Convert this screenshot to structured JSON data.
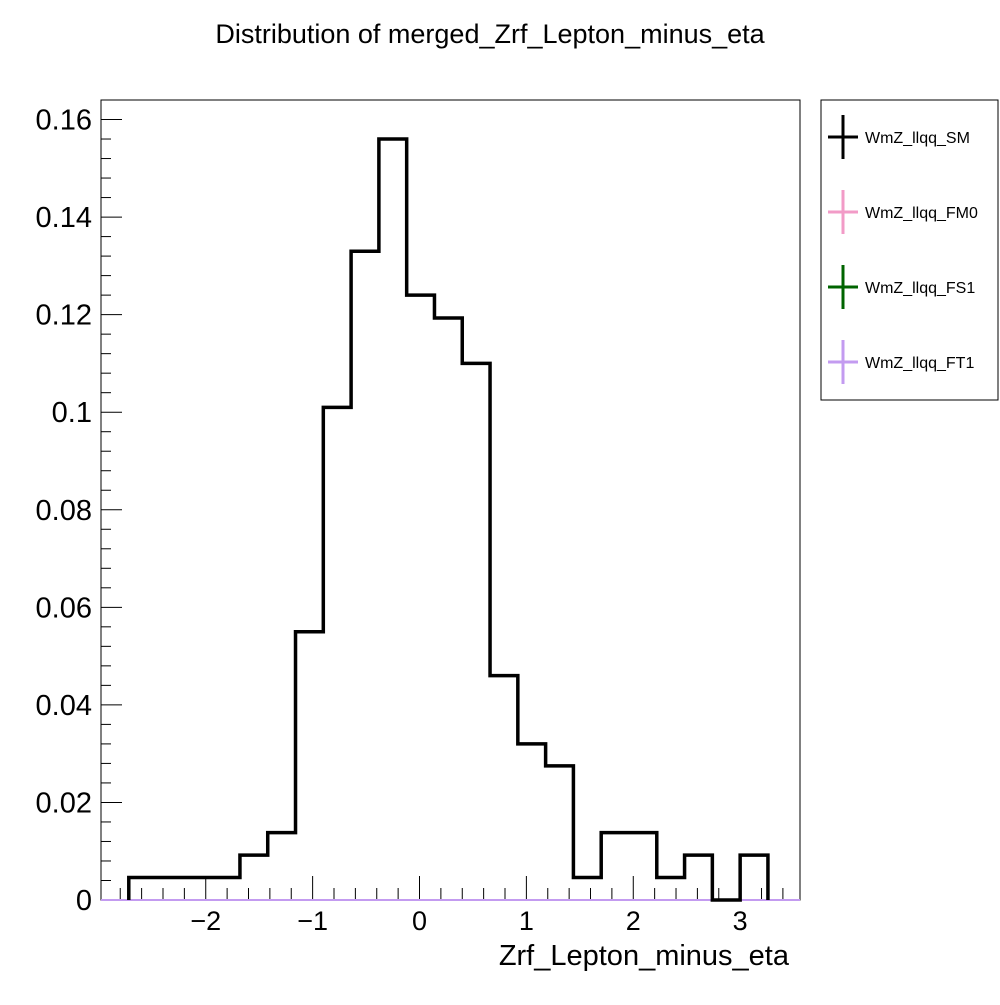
{
  "chart_data": {
    "type": "histogram",
    "title": "Distribution of merged_Zrf_Lepton_minus_eta",
    "xlabel": "Zrf_Lepton_minus_eta",
    "ylabel": "",
    "xlim": [
      -2.98,
      3.56
    ],
    "ylim": [
      0,
      0.164
    ],
    "x_ticks": [
      -2,
      -1,
      0,
      1,
      2,
      3
    ],
    "x_tick_labels": [
      "−2",
      "−1",
      "0",
      "1",
      "2",
      "3"
    ],
    "y_ticks": [
      0,
      0.02,
      0.04,
      0.06,
      0.08,
      0.1,
      0.12,
      0.14,
      0.16
    ],
    "y_tick_labels": [
      "0",
      "0.02",
      "0.04",
      "0.06",
      "0.08",
      "0.1",
      "0.12",
      "0.14",
      "0.16"
    ],
    "bin_edges": [
      -2.72,
      -2.46,
      -2.2,
      -1.94,
      -1.68,
      -1.42,
      -1.16,
      -0.9,
      -0.64,
      -0.38,
      -0.12,
      0.14,
      0.4,
      0.66,
      0.92,
      1.18,
      1.44,
      1.7,
      1.96,
      2.22,
      2.48,
      2.74,
      3.0,
      3.26
    ],
    "series": [
      {
        "name": "WmZ_llqq_SM",
        "color": "#000000",
        "values": [
          0.0046,
          0.0046,
          0.0046,
          0.0046,
          0.0092,
          0.0138,
          0.055,
          0.101,
          0.133,
          0.156,
          0.124,
          0.1193,
          0.11,
          0.046,
          0.032,
          0.0275,
          0.0046,
          0.0138,
          0.0138,
          0.0046,
          0.0092,
          0,
          0.0092
        ]
      },
      {
        "name": "WmZ_llqq_FM0",
        "color": "#f29bc7",
        "values": [
          0,
          0,
          0,
          0,
          0,
          0,
          0,
          0,
          0,
          0,
          0,
          0,
          0,
          0,
          0,
          0,
          0,
          0,
          0,
          0,
          0,
          0,
          0
        ]
      },
      {
        "name": "WmZ_llqq_FS1",
        "color": "#006400",
        "values": [
          0,
          0,
          0,
          0,
          0,
          0,
          0,
          0,
          0,
          0,
          0,
          0,
          0,
          0,
          0,
          0,
          0,
          0,
          0,
          0,
          0,
          0,
          0
        ]
      },
      {
        "name": "WmZ_llqq_FT1",
        "color": "#c39bf0",
        "values": [
          0,
          0,
          0,
          0,
          0,
          0,
          0,
          0,
          0,
          0,
          0,
          0,
          0,
          0,
          0,
          0,
          0,
          0,
          0,
          0,
          0,
          0,
          0
        ]
      }
    ],
    "legend_position": "right",
    "grid": false
  }
}
